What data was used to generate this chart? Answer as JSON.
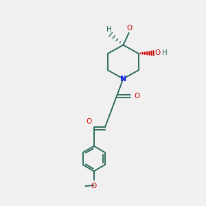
{
  "bg_color": "#f0f0f0",
  "bond_color": "#2d6b5e",
  "bond_width": 1.4,
  "N_color": "#1a1aff",
  "O_color": "#cc0000",
  "text_color": "#2d6b5e",
  "figsize": [
    3.0,
    3.0
  ],
  "dpi": 100,
  "xlim": [
    0,
    10
  ],
  "ylim": [
    0,
    10
  ]
}
